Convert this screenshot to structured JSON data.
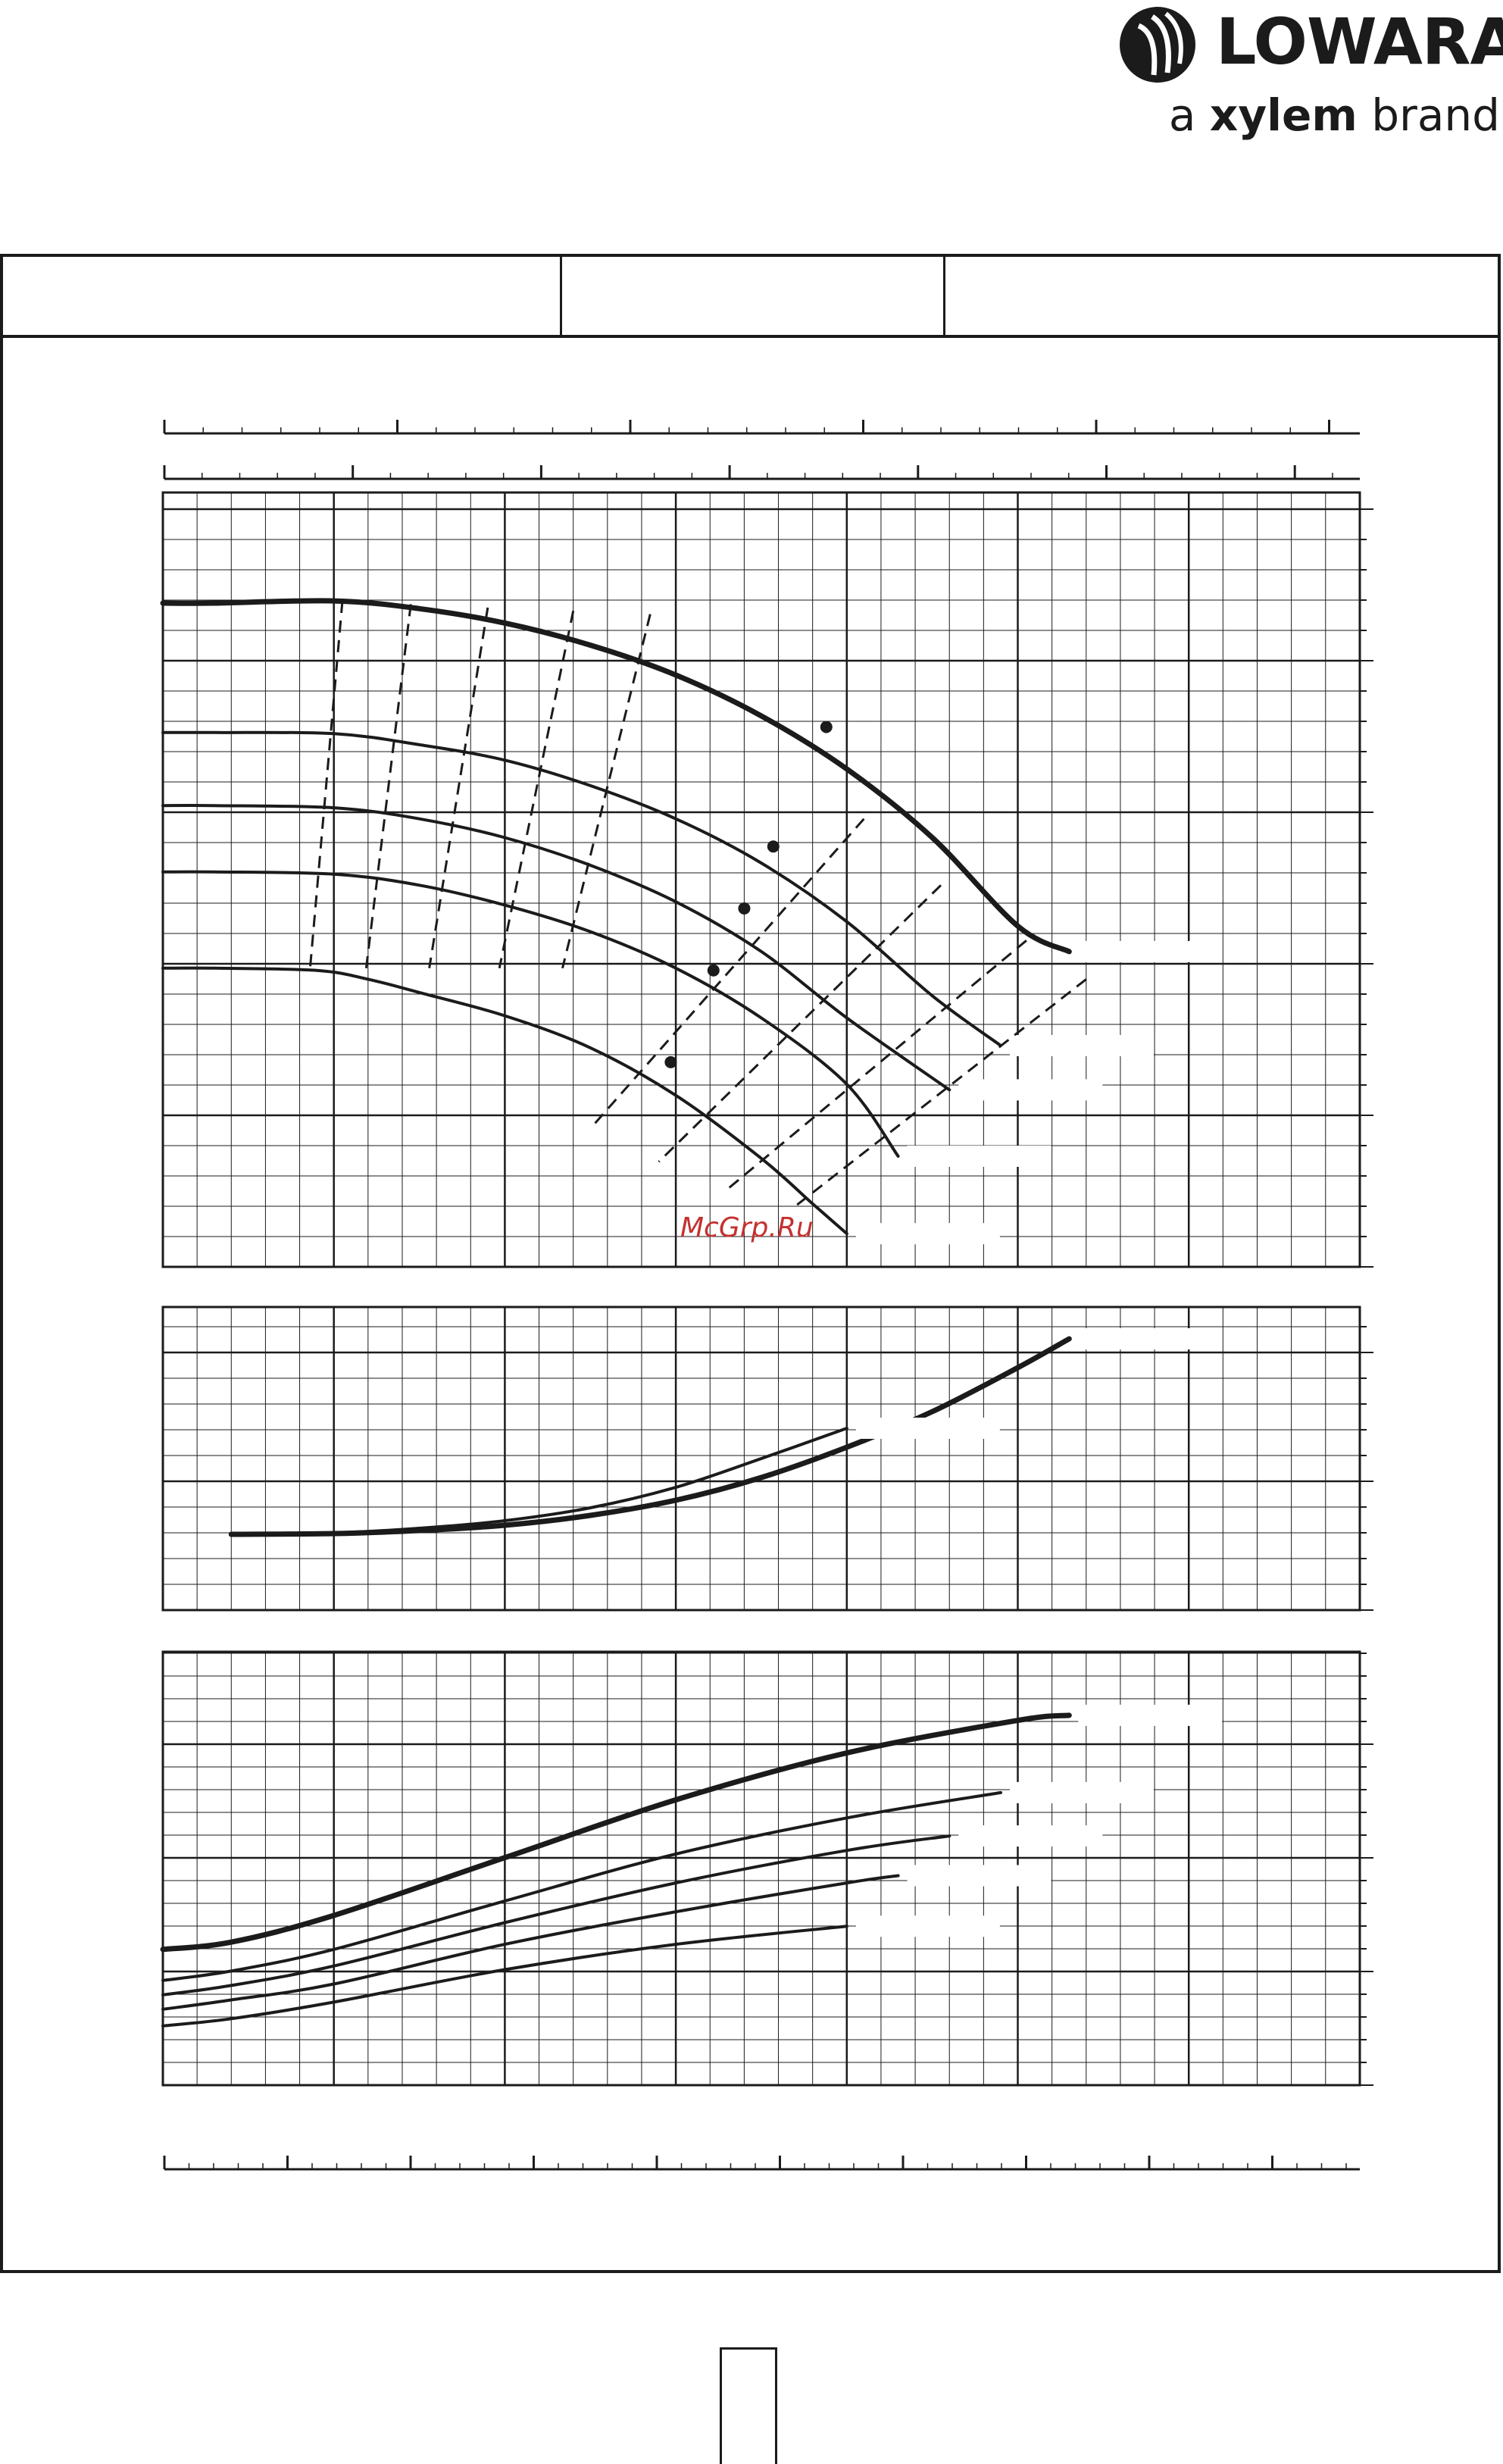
{
  "brand": {
    "name": "LOWARA",
    "tagline_prefix": "a",
    "tagline_brand": "xylem",
    "tagline_suffix": "brand",
    "color": "#1b1b1b"
  },
  "watermark": "McGrp.Ru",
  "colors": {
    "ink": "#1b1b1b",
    "watermark": "#c4312f",
    "background": "#ffffff"
  },
  "chart_data": [
    {
      "type": "line",
      "panel": "head",
      "title": "",
      "xlabel": "",
      "ylabel": "",
      "xlim": [
        0,
        7
      ],
      "ylim": [
        0,
        7
      ],
      "grid": true,
      "series": [
        {
          "bold": true,
          "x": [
            0,
            0.3,
            1.0,
            1.5,
            2.0,
            2.5,
            3.0,
            3.5,
            4.0,
            4.5,
            5.0,
            5.3
          ],
          "y": [
            6.0,
            6.0,
            6.02,
            5.95,
            5.82,
            5.62,
            5.35,
            4.98,
            4.5,
            3.88,
            3.08,
            2.85
          ]
        },
        {
          "bold": false,
          "x": [
            0,
            0.3,
            1.0,
            1.5,
            2.0,
            2.5,
            3.0,
            3.5,
            4.0,
            4.5,
            4.9
          ],
          "y": [
            4.83,
            4.83,
            4.82,
            4.72,
            4.58,
            4.35,
            4.05,
            3.65,
            3.12,
            2.45,
            2.0
          ]
        },
        {
          "bold": false,
          "x": [
            0,
            0.3,
            1.0,
            1.5,
            2.0,
            2.5,
            3.0,
            3.5,
            4.0,
            4.6
          ],
          "y": [
            4.17,
            4.17,
            4.15,
            4.05,
            3.88,
            3.63,
            3.3,
            2.85,
            2.25,
            1.6
          ]
        },
        {
          "bold": false,
          "x": [
            0,
            0.3,
            1.0,
            1.5,
            2.0,
            2.5,
            3.0,
            3.5,
            4.0,
            4.3
          ],
          "y": [
            3.57,
            3.57,
            3.55,
            3.45,
            3.27,
            3.03,
            2.7,
            2.25,
            1.65,
            1.0
          ]
        },
        {
          "bold": false,
          "x": [
            0,
            0.3,
            0.9,
            1.2,
            1.5,
            2.0,
            2.5,
            3.0,
            3.5,
            3.8,
            4.0
          ],
          "y": [
            2.7,
            2.7,
            2.68,
            2.6,
            2.48,
            2.27,
            1.98,
            1.55,
            0.98,
            0.57,
            0.3
          ]
        }
      ],
      "points": [
        {
          "x": 3.88,
          "y": 4.88
        },
        {
          "x": 3.57,
          "y": 3.8
        },
        {
          "x": 3.4,
          "y": 3.24
        },
        {
          "x": 3.22,
          "y": 2.68
        },
        {
          "x": 2.97,
          "y": 1.85
        }
      ]
    },
    {
      "type": "line",
      "panel": "npsh",
      "title": "",
      "xlabel": "",
      "ylabel": "",
      "xlim": [
        0,
        7
      ],
      "ylim": [
        0,
        4
      ],
      "grid": true,
      "series": [
        {
          "bold": true,
          "x": [
            0.4,
            1.0,
            1.5,
            2.0,
            2.5,
            3.0,
            3.5,
            4.0,
            4.5,
            5.0,
            5.3
          ],
          "y": [
            1.0,
            1.01,
            1.05,
            1.12,
            1.25,
            1.45,
            1.75,
            2.15,
            2.62,
            3.2,
            3.58
          ]
        },
        {
          "bold": false,
          "x": [
            0.4,
            1.0,
            1.5,
            2.0,
            2.5,
            3.0,
            3.5,
            4.0
          ],
          "y": [
            1.0,
            1.02,
            1.08,
            1.18,
            1.35,
            1.62,
            2.0,
            2.4
          ]
        }
      ]
    },
    {
      "type": "line",
      "panel": "power",
      "title": "",
      "xlabel": "",
      "ylabel": "",
      "xlim": [
        0,
        7
      ],
      "ylim": [
        0,
        6
      ],
      "grid": true,
      "series": [
        {
          "bold": true,
          "x": [
            0,
            0.4,
            1.0,
            2.0,
            3.0,
            4.0,
            5.0,
            5.3
          ],
          "y": [
            1.88,
            1.98,
            2.35,
            3.15,
            3.95,
            4.6,
            5.05,
            5.12
          ]
        },
        {
          "bold": false,
          "x": [
            0,
            0.4,
            1.0,
            2.0,
            3.0,
            4.0,
            4.9
          ],
          "y": [
            1.45,
            1.58,
            1.88,
            2.55,
            3.2,
            3.7,
            4.05
          ]
        },
        {
          "bold": false,
          "x": [
            0,
            0.4,
            1.0,
            2.0,
            3.0,
            4.0,
            4.6
          ],
          "y": [
            1.25,
            1.38,
            1.65,
            2.25,
            2.8,
            3.25,
            3.45
          ]
        },
        {
          "bold": false,
          "x": [
            0,
            0.4,
            1.0,
            2.0,
            3.0,
            4.0,
            4.3
          ],
          "y": [
            1.05,
            1.18,
            1.4,
            1.95,
            2.4,
            2.8,
            2.9
          ]
        },
        {
          "bold": false,
          "x": [
            0,
            0.4,
            1.0,
            2.0,
            3.0,
            4.0
          ],
          "y": [
            0.82,
            0.92,
            1.15,
            1.6,
            1.95,
            2.2
          ]
        }
      ]
    }
  ]
}
